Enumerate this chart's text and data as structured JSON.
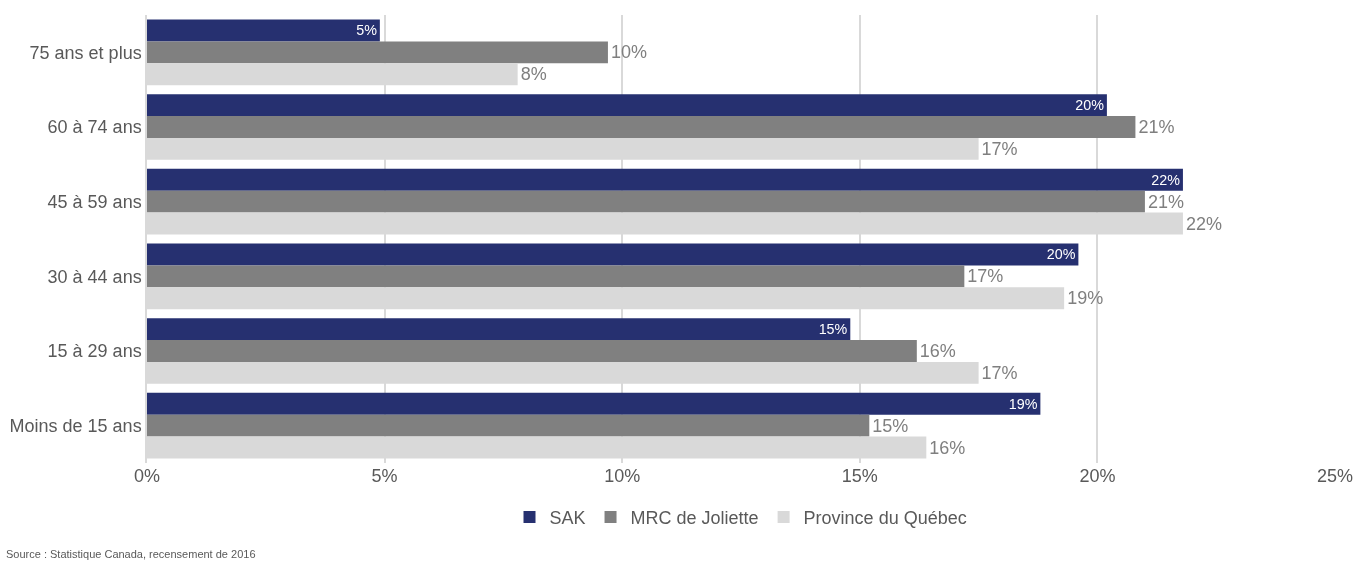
{
  "chart_data": {
    "type": "bar",
    "orientation": "horizontal",
    "categories": [
      "75 ans et plus",
      "60 à 74 ans",
      "45 à 59 ans",
      "30 à 44 ans",
      "15 à 29 ans",
      "Moins de 15 ans"
    ],
    "series": [
      {
        "name": "SAK",
        "color": "#263070",
        "values": [
          4.9,
          20.2,
          21.8,
          19.6,
          14.8,
          18.8
        ],
        "value_labels": [
          "5%",
          "20%",
          "22%",
          "20%",
          "15%",
          "19%"
        ]
      },
      {
        "name": "MRC de Joliette",
        "color": "#808080",
        "values": [
          9.7,
          20.8,
          21.0,
          17.2,
          16.2,
          15.2
        ],
        "value_labels": [
          "10%",
          "21%",
          "21%",
          "17%",
          "16%",
          "15%"
        ]
      },
      {
        "name": "Province du Québec",
        "color": "#d9d9d9",
        "values": [
          7.8,
          17.5,
          21.8,
          19.3,
          17.5,
          16.4
        ],
        "value_labels": [
          "8%",
          "17%",
          "22%",
          "19%",
          "17%",
          "16%"
        ]
      }
    ],
    "xlim": [
      0,
      25
    ],
    "xticks": [
      {
        "value": 0,
        "label": "0%"
      },
      {
        "value": 5,
        "label": "5%"
      },
      {
        "value": 10,
        "label": "10%"
      },
      {
        "value": 15,
        "label": "15%"
      },
      {
        "value": 20,
        "label": "20%"
      },
      {
        "value": 25,
        "label": "25%"
      }
    ],
    "grid": "x",
    "legend": "bottom",
    "annotations": [
      "Source : Statistique Canada, recensement de 2016"
    ]
  }
}
